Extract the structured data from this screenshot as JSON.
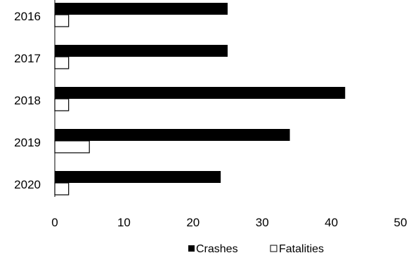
{
  "chart_data": {
    "type": "bar",
    "orientation": "horizontal",
    "categories": [
      "2016",
      "2017",
      "2018",
      "2019",
      "2020"
    ],
    "series": [
      {
        "name": "Crashes",
        "values": [
          25,
          25,
          42,
          34,
          24
        ],
        "color": "#000000",
        "fill": "solid"
      },
      {
        "name": "Fatalities",
        "values": [
          2,
          2,
          2,
          5,
          2
        ],
        "color": "#ffffff",
        "fill": "outline"
      }
    ],
    "xlim": [
      0,
      50
    ],
    "x_ticks": [
      "0",
      "10",
      "20",
      "30",
      "40",
      "50"
    ],
    "grid": false,
    "legend_position": "bottom"
  }
}
